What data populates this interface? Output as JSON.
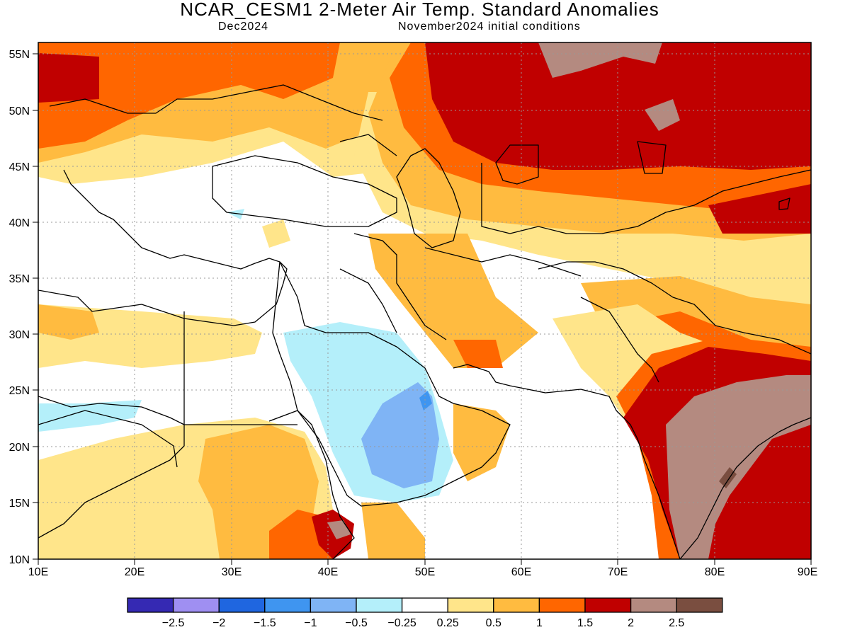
{
  "title": "NCAR_CESM1 2-Meter Air Temp. Standard Anomalies",
  "subtitle_left": "Dec2024",
  "subtitle_right": "November2024 initial conditions",
  "lat_labels": [
    "55N",
    "50N",
    "45N",
    "40N",
    "35N",
    "30N",
    "25N",
    "20N",
    "15N",
    "10N"
  ],
  "lon_labels": [
    "10E",
    "20E",
    "30E",
    "40E",
    "50E",
    "60E",
    "70E",
    "80E",
    "90E"
  ],
  "colorbar": {
    "colors": [
      "#3529b3",
      "#9f8ff2",
      "#1f66e0",
      "#3f95f0",
      "#7fb4f5",
      "#b4effa",
      "#ffffff",
      "#ffe58a",
      "#ffbb40",
      "#ff6600",
      "#c00000",
      "#b48a80",
      "#7a4e40"
    ],
    "labels": [
      "−2.5",
      "−2",
      "−1.5",
      "−1",
      "−0.5",
      "−0.25",
      "0.25",
      "0.5",
      "1",
      "1.5",
      "2",
      "2.5"
    ]
  },
  "colors": {
    "white": "#ffffff",
    "light_yellow": "#ffe58a",
    "light_orange": "#ffbb40",
    "orange": "#ff6600",
    "red": "#c00000",
    "brown": "#b48a80",
    "dark_brown": "#7a4e40",
    "light_blue": "#b4effa",
    "blue": "#7fb4f5",
    "mid_blue": "#3f95f0"
  }
}
